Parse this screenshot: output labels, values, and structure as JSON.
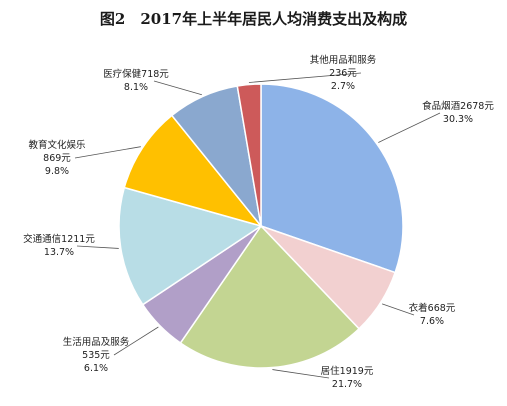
{
  "chart_data": {
    "type": "pie",
    "title": "图2　2017年上半年居民人均消费支出及构成",
    "slices": [
      {
        "name": "食品烟酒",
        "value": 2678,
        "unit": "元",
        "pct": "30.3%",
        "color": "#8db3e8"
      },
      {
        "name": "衣着",
        "value": 668,
        "unit": "元",
        "pct": "7.6%",
        "color": "#f2d0d0"
      },
      {
        "name": "居住",
        "value": 1919,
        "unit": "元",
        "pct": "21.7%",
        "color": "#c3d592"
      },
      {
        "name": "生活用品及服务",
        "value": 535,
        "unit": "元",
        "pct": "6.1%",
        "color": "#b19fc8"
      },
      {
        "name": "交通通信",
        "value": 1211,
        "unit": "元",
        "pct": "13.7%",
        "color": "#b8dde6"
      },
      {
        "name": "教育文化娱乐",
        "value": 869,
        "unit": "元",
        "pct": "9.8%",
        "color": "#ffc000"
      },
      {
        "name": "医疗保健",
        "value": 718,
        "unit": "元",
        "pct": "8.1%",
        "color": "#8aa8cf"
      },
      {
        "name": "其他用品和服务",
        "value": 236,
        "unit": "元",
        "pct": "2.7%",
        "color": "#cd5a5a"
      }
    ]
  }
}
